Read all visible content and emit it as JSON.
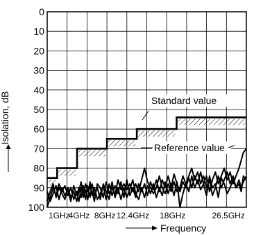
{
  "chart_data": {
    "type": "line",
    "title": "",
    "xlabel": "Frequency",
    "ylabel": "Isolation, dB",
    "x_tick_labels": [
      "1GHz",
      "4GHz",
      "8GHz",
      "12.4GHz",
      "18GHz",
      "26.5GHz"
    ],
    "y_tick_labels": [
      "0",
      "10",
      "20",
      "30",
      "40",
      "50",
      "60",
      "70",
      "80",
      "90",
      "100"
    ],
    "ylim": [
      0,
      100
    ],
    "y_inverted": true,
    "grid": true,
    "annotations": [
      "Standard value",
      "Reference value"
    ],
    "series": [
      {
        "name": "Standard value",
        "style": "step",
        "steps": [
          {
            "x_start": "1GHz",
            "x_end": "4GHz",
            "y": 85
          },
          {
            "x_start": "4GHz",
            "x_end": "8GHz",
            "y": 80
          },
          {
            "x_start": "8GHz",
            "x_end": "12.4GHz",
            "y": 70
          },
          {
            "x_start": "12.4GHz",
            "x_end": "18GHz",
            "y": 65
          },
          {
            "x_start": "18GHz",
            "x_end": "26.5GHz",
            "y": 60
          },
          {
            "x_start": "26.5GHz",
            "x_end": "26.5GHz+",
            "y": 54
          }
        ]
      }
    ],
    "measured_traces": [
      [
        [
          0.0,
          97
        ],
        [
          0.4,
          92
        ],
        [
          0.8,
          88
        ],
        [
          1.2,
          95
        ],
        [
          1.6,
          90
        ],
        [
          2.0,
          93
        ],
        [
          2.4,
          96
        ],
        [
          2.8,
          90
        ],
        [
          3.2,
          95
        ],
        [
          3.6,
          92
        ],
        [
          4.0,
          97
        ],
        [
          4.3,
          92
        ],
        [
          4.6,
          87
        ],
        [
          4.9,
          93
        ],
        [
          5.2,
          88
        ],
        [
          5.5,
          92
        ],
        [
          5.8,
          90
        ],
        [
          6.1,
          92
        ],
        [
          6.4,
          97
        ],
        [
          6.8,
          88
        ],
        [
          7.2,
          90
        ],
        [
          7.6,
          95
        ],
        [
          8.0,
          87
        ],
        [
          8.4,
          93
        ],
        [
          8.8,
          90
        ],
        [
          9.2,
          94
        ],
        [
          9.6,
          86
        ],
        [
          10.0,
          91
        ],
        [
          10.4,
          88
        ],
        [
          10.8,
          91
        ],
        [
          11.2,
          88
        ],
        [
          11.6,
          92
        ],
        [
          12.0,
          88
        ],
        [
          12.4,
          92
        ],
        [
          12.8,
          86
        ],
        [
          13.2,
          80
        ],
        [
          13.6,
          87
        ],
        [
          14.0,
          90
        ],
        [
          14.4,
          93
        ],
        [
          14.8,
          90
        ],
        [
          15.2,
          84
        ],
        [
          15.6,
          90
        ],
        [
          16.0,
          93
        ],
        [
          16.4,
          88
        ],
        [
          16.8,
          92
        ],
        [
          17.2,
          87
        ],
        [
          17.6,
          92
        ],
        [
          18.0,
          90
        ],
        [
          18.4,
          84
        ],
        [
          18.8,
          88
        ],
        [
          19.2,
          92
        ],
        [
          19.6,
          84
        ],
        [
          20.0,
          90
        ],
        [
          20.4,
          86
        ],
        [
          20.8,
          91
        ],
        [
          21.2,
          88
        ],
        [
          21.6,
          94
        ],
        [
          22.0,
          84
        ],
        [
          22.4,
          90
        ],
        [
          22.8,
          88
        ],
        [
          23.2,
          95
        ],
        [
          23.6,
          85
        ],
        [
          24.0,
          88
        ],
        [
          24.4,
          93
        ],
        [
          24.8,
          90
        ],
        [
          25.2,
          86
        ],
        [
          25.6,
          90
        ],
        [
          26.0,
          88
        ],
        [
          26.3,
          92
        ],
        [
          26.6,
          84
        ],
        [
          27.0,
          86
        ]
      ],
      [
        [
          0.0,
          100
        ],
        [
          0.4,
          95
        ],
        [
          0.8,
          90
        ],
        [
          1.2,
          94
        ],
        [
          1.6,
          88
        ],
        [
          2.0,
          92
        ],
        [
          2.4,
          89
        ],
        [
          2.8,
          94
        ],
        [
          3.2,
          90
        ],
        [
          3.6,
          96
        ],
        [
          4.0,
          92
        ],
        [
          4.3,
          97
        ],
        [
          4.6,
          90
        ],
        [
          4.9,
          95
        ],
        [
          5.2,
          91
        ],
        [
          5.5,
          96
        ],
        [
          5.8,
          87
        ],
        [
          6.1,
          94
        ],
        [
          6.4,
          90
        ],
        [
          6.8,
          96
        ],
        [
          7.2,
          93
        ],
        [
          7.6,
          89
        ],
        [
          8.0,
          96
        ],
        [
          8.4,
          88
        ],
        [
          8.8,
          94
        ],
        [
          9.2,
          89
        ],
        [
          9.6,
          93
        ],
        [
          10.0,
          87
        ],
        [
          10.4,
          95
        ],
        [
          10.8,
          86
        ],
        [
          11.2,
          94
        ],
        [
          11.6,
          90
        ],
        [
          12.0,
          95
        ],
        [
          12.4,
          88
        ],
        [
          12.8,
          92
        ],
        [
          13.2,
          88
        ],
        [
          13.6,
          94
        ],
        [
          14.0,
          87
        ],
        [
          14.4,
          91
        ],
        [
          14.8,
          86
        ],
        [
          15.2,
          92
        ],
        [
          15.6,
          86
        ],
        [
          16.0,
          90
        ],
        [
          16.4,
          84
        ],
        [
          16.8,
          90
        ],
        [
          17.2,
          83
        ],
        [
          17.6,
          88
        ],
        [
          18.0,
          92
        ],
        [
          18.4,
          87
        ],
        [
          18.8,
          90
        ],
        [
          19.2,
          85
        ],
        [
          19.6,
          90
        ],
        [
          20.0,
          84
        ],
        [
          20.4,
          88
        ],
        [
          20.8,
          82
        ],
        [
          21.2,
          88
        ],
        [
          21.6,
          84
        ],
        [
          22.0,
          92
        ],
        [
          22.4,
          86
        ],
        [
          22.8,
          82
        ],
        [
          23.2,
          88
        ],
        [
          23.6,
          84
        ],
        [
          24.0,
          80
        ],
        [
          24.4,
          86
        ],
        [
          24.8,
          82
        ],
        [
          25.2,
          88
        ],
        [
          25.6,
          84
        ],
        [
          26.0,
          80
        ],
        [
          26.3,
          76
        ],
        [
          26.6,
          72
        ],
        [
          27.0,
          70
        ]
      ],
      [
        [
          0.0,
          92
        ],
        [
          0.4,
          97
        ],
        [
          0.8,
          93
        ],
        [
          1.2,
          89
        ],
        [
          1.6,
          96
        ],
        [
          2.0,
          90
        ],
        [
          2.4,
          94
        ],
        [
          2.8,
          91
        ],
        [
          3.2,
          97
        ],
        [
          3.6,
          89
        ],
        [
          4.0,
          94
        ],
        [
          4.3,
          90
        ],
        [
          4.6,
          95
        ],
        [
          4.9,
          89
        ],
        [
          5.2,
          96
        ],
        [
          5.5,
          89
        ],
        [
          5.8,
          95
        ],
        [
          6.1,
          88
        ],
        [
          6.4,
          94
        ],
        [
          6.8,
          90
        ],
        [
          7.2,
          96
        ],
        [
          7.6,
          88
        ],
        [
          8.0,
          92
        ],
        [
          8.4,
          96
        ],
        [
          8.8,
          87
        ],
        [
          9.2,
          95
        ],
        [
          9.6,
          90
        ],
        [
          10.0,
          96
        ],
        [
          10.4,
          90
        ],
        [
          10.8,
          95
        ],
        [
          11.2,
          91
        ],
        [
          11.6,
          86
        ],
        [
          12.0,
          93
        ],
        [
          12.4,
          96
        ],
        [
          12.8,
          90
        ],
        [
          13.2,
          95
        ],
        [
          13.6,
          89
        ],
        [
          14.0,
          93
        ],
        [
          14.4,
          88
        ],
        [
          14.8,
          95
        ],
        [
          15.2,
          90
        ],
        [
          15.6,
          94
        ],
        [
          16.0,
          87
        ],
        [
          16.4,
          93
        ],
        [
          16.8,
          88
        ],
        [
          17.2,
          94
        ],
        [
          17.6,
          87
        ],
        [
          18.0,
          100
        ],
        [
          18.4,
          93
        ],
        [
          18.8,
          88
        ],
        [
          19.2,
          84
        ],
        [
          19.6,
          80
        ],
        [
          20.0,
          86
        ],
        [
          20.4,
          82
        ],
        [
          20.8,
          88
        ],
        [
          21.2,
          84
        ],
        [
          21.6,
          90
        ],
        [
          22.0,
          86
        ],
        [
          22.4,
          94
        ],
        [
          22.8,
          90
        ],
        [
          23.2,
          84
        ],
        [
          23.6,
          90
        ],
        [
          24.0,
          86
        ],
        [
          24.4,
          82
        ],
        [
          24.8,
          88
        ],
        [
          25.2,
          84
        ],
        [
          25.6,
          90
        ],
        [
          26.0,
          86
        ],
        [
          26.3,
          90
        ],
        [
          26.6,
          87
        ],
        [
          27.0,
          84
        ]
      ]
    ]
  }
}
